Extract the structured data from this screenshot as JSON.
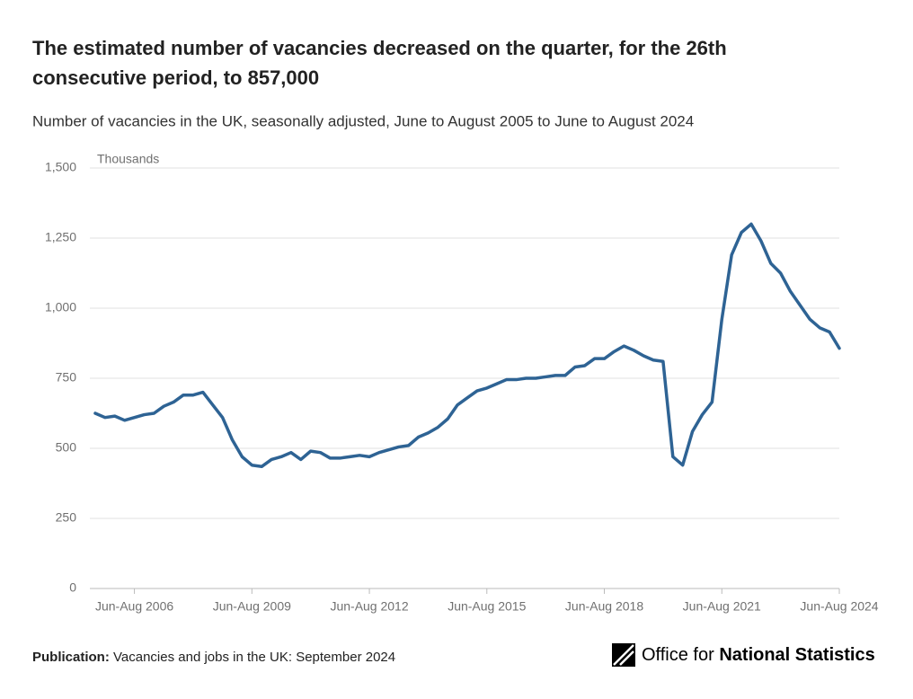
{
  "chart_data": {
    "type": "line",
    "title": "The estimated number of vacancies decreased on the quarter, for the 26th",
    "title_line2": "consecutive period, to 857,000",
    "subtitle": "Number of vacancies in the UK, seasonally adjusted, June to August 2005 to June to August 2024",
    "y_unit": "Thousands",
    "categories": [
      null,
      null,
      null,
      null,
      "Jun-Aug 2006",
      null,
      null,
      null,
      null,
      null,
      null,
      null,
      null,
      null,
      null,
      null,
      "Jun-Aug 2009",
      null,
      null,
      null,
      null,
      null,
      null,
      null,
      null,
      null,
      null,
      null,
      "Jun-Aug 2012",
      null,
      null,
      null,
      null,
      null,
      null,
      null,
      null,
      null,
      null,
      null,
      "Jun-Aug 2015",
      null,
      null,
      null,
      null,
      null,
      null,
      null,
      null,
      null,
      null,
      null,
      "Jun-Aug 2018",
      null,
      null,
      null,
      null,
      null,
      null,
      null,
      null,
      null,
      null,
      null,
      "Jun-Aug 2021",
      null,
      null,
      null,
      null,
      null,
      null,
      null,
      null,
      null,
      null,
      null,
      "Jun-Aug 2024"
    ],
    "values": [
      625,
      610,
      615,
      600,
      610,
      620,
      625,
      650,
      665,
      690,
      690,
      700,
      655,
      610,
      530,
      470,
      440,
      435,
      460,
      470,
      485,
      460,
      490,
      485,
      465,
      465,
      470,
      475,
      470,
      485,
      495,
      505,
      510,
      540,
      555,
      575,
      605,
      655,
      680,
      705,
      715,
      730,
      745,
      745,
      750,
      750,
      755,
      760,
      760,
      790,
      795,
      820,
      820,
      845,
      865,
      850,
      830,
      815,
      810,
      470,
      440,
      560,
      620,
      665,
      960,
      1190,
      1270,
      1300,
      1240,
      1160,
      1125,
      1060,
      1010,
      960,
      930,
      915,
      857
    ],
    "color": "#2e6394",
    "ylim": [
      0,
      1500
    ],
    "yticks": [
      0,
      250,
      500,
      750,
      {
        "value": 1000,
        "label": "1,000"
      },
      {
        "value": 1250,
        "label": "1,250"
      },
      {
        "value": 1500,
        "label": "1,500"
      }
    ],
    "grid": true
  },
  "footer": {
    "label": "Publication:",
    "text": "Vacancies and jobs in the UK: September 2024"
  },
  "logo": {
    "light": "Office for",
    "bold": "National Statistics"
  }
}
